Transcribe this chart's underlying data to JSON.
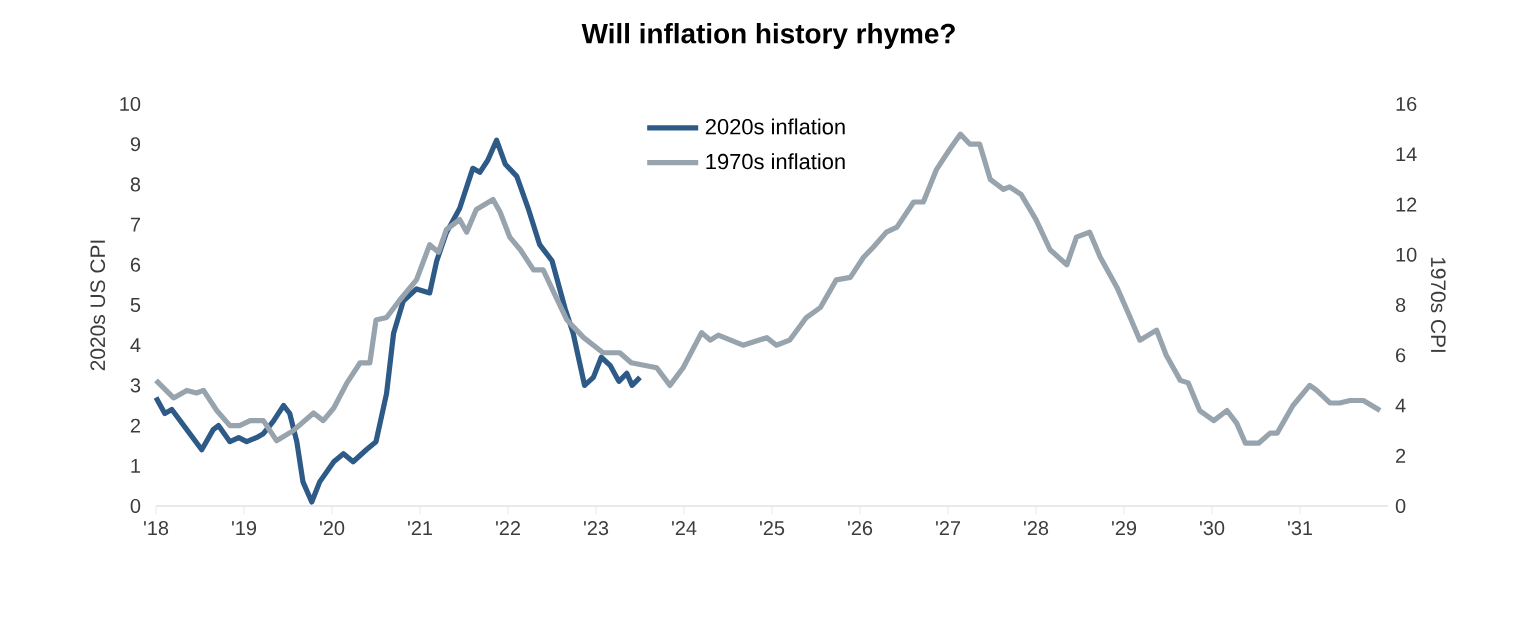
{
  "chart_data": {
    "type": "line",
    "title": "Will inflation history rhyme?",
    "ylabel": "2020s US CPI",
    "y2label": "1970s CPI",
    "xlim": [
      2018,
      2032
    ],
    "xticks": [
      {
        "value": 2018,
        "label": "'18"
      },
      {
        "value": 2019,
        "label": "'19"
      },
      {
        "value": 2020,
        "label": "'20"
      },
      {
        "value": 2021,
        "label": "'21"
      },
      {
        "value": 2022,
        "label": "'22"
      },
      {
        "value": 2023,
        "label": "'23"
      },
      {
        "value": 2024,
        "label": "'24"
      },
      {
        "value": 2025,
        "label": "'25"
      },
      {
        "value": 2026,
        "label": "'26"
      },
      {
        "value": 2027,
        "label": "'27"
      },
      {
        "value": 2028,
        "label": "'28"
      },
      {
        "value": 2029,
        "label": "'29"
      },
      {
        "value": 2030,
        "label": "'30"
      },
      {
        "value": 2031,
        "label": "'31"
      }
    ],
    "ylim": [
      0,
      10
    ],
    "yticks": [
      0,
      1,
      2,
      3,
      4,
      5,
      6,
      7,
      8,
      9,
      10
    ],
    "y2lim": [
      0,
      16
    ],
    "y2ticks": [
      0,
      2,
      4,
      6,
      8,
      10,
      12,
      14,
      16
    ],
    "legend": "top",
    "grid": false,
    "line_style": "solid",
    "series": [
      {
        "name": "2020s inflation",
        "color": "#2e5a87",
        "x": [
          2018.0,
          2018.1,
          2018.18,
          2018.35,
          2018.52,
          2018.65,
          2018.71,
          2018.84,
          2018.94,
          2019.03,
          2019.14,
          2019.22,
          2019.33,
          2019.45,
          2019.52,
          2019.6,
          2019.67,
          2019.77,
          2019.86,
          2020.02,
          2020.13,
          2020.24,
          2020.39,
          2020.5,
          2020.62,
          2020.7,
          2020.81,
          2020.96,
          2021.11,
          2021.19,
          2021.3,
          2021.45,
          2021.6,
          2021.68,
          2021.77,
          2021.87,
          2021.97,
          2022.1,
          2022.23,
          2022.36,
          2022.5,
          2022.65,
          2022.74,
          2022.87,
          2022.97,
          2023.06,
          2023.16,
          2023.26,
          2023.35,
          2023.41,
          2023.5
        ],
        "values": [
          2.7,
          2.3,
          2.4,
          1.9,
          1.4,
          1.9,
          2.0,
          1.6,
          1.7,
          1.6,
          1.7,
          1.8,
          2.1,
          2.5,
          2.3,
          1.6,
          0.6,
          0.1,
          0.6,
          1.1,
          1.3,
          1.1,
          1.4,
          1.6,
          2.8,
          4.3,
          5.1,
          5.4,
          5.3,
          6.1,
          6.8,
          7.4,
          8.4,
          8.3,
          8.6,
          9.1,
          8.5,
          8.2,
          7.4,
          6.5,
          6.1,
          4.9,
          4.3,
          3.0,
          3.2,
          3.7,
          3.5,
          3.1,
          3.3,
          3.0,
          3.2
        ]
      },
      {
        "name": "1970s inflation",
        "color": "#97a3ad",
        "axis": "y2",
        "x": [
          2018.0,
          2018.2,
          2018.35,
          2018.46,
          2018.54,
          2018.69,
          2018.84,
          2018.95,
          2019.07,
          2019.22,
          2019.37,
          2019.56,
          2019.79,
          2019.9,
          2020.02,
          2020.17,
          2020.32,
          2020.43,
          2020.5,
          2020.62,
          2020.77,
          2020.96,
          2021.11,
          2021.21,
          2021.3,
          2021.45,
          2021.53,
          2021.64,
          2021.83,
          2021.91,
          2022.02,
          2022.14,
          2022.29,
          2022.4,
          2022.52,
          2022.67,
          2022.86,
          2023.08,
          2023.27,
          2023.4,
          2023.69,
          2023.84,
          2023.99,
          2024.2,
          2024.3,
          2024.39,
          2024.67,
          2024.94,
          2025.05,
          2025.2,
          2025.39,
          2025.55,
          2025.73,
          2025.89,
          2026.04,
          2026.15,
          2026.3,
          2026.42,
          2026.61,
          2026.72,
          2026.87,
          2027.02,
          2027.14,
          2027.25,
          2027.36,
          2027.48,
          2027.63,
          2027.7,
          2027.83,
          2028.0,
          2028.16,
          2028.35,
          2028.46,
          2028.61,
          2028.73,
          2028.92,
          2029.07,
          2029.18,
          2029.37,
          2029.48,
          2029.64,
          2029.73,
          2029.86,
          2030.02,
          2030.17,
          2030.28,
          2030.38,
          2030.53,
          2030.66,
          2030.74,
          2030.92,
          2031.11,
          2031.19,
          2031.34,
          2031.45,
          2031.57,
          2031.72,
          2031.91
        ],
        "values": [
          5.0,
          4.3,
          4.6,
          4.5,
          4.6,
          3.8,
          3.2,
          3.2,
          3.4,
          3.4,
          2.6,
          3.0,
          3.7,
          3.4,
          3.9,
          4.9,
          5.7,
          5.7,
          7.4,
          7.5,
          8.2,
          9.0,
          10.4,
          10.1,
          11.0,
          11.4,
          10.9,
          11.8,
          12.2,
          11.7,
          10.7,
          10.2,
          9.4,
          9.4,
          8.5,
          7.4,
          6.7,
          6.1,
          6.1,
          5.7,
          5.5,
          4.8,
          5.5,
          6.9,
          6.6,
          6.8,
          6.4,
          6.7,
          6.4,
          6.6,
          7.5,
          7.9,
          9.0,
          9.1,
          9.9,
          10.3,
          10.9,
          11.1,
          12.1,
          12.1,
          13.4,
          14.2,
          14.8,
          14.4,
          14.4,
          13.0,
          12.6,
          12.7,
          12.4,
          11.4,
          10.2,
          9.6,
          10.7,
          10.9,
          9.9,
          8.7,
          7.5,
          6.6,
          7.0,
          6.0,
          5.0,
          4.9,
          3.8,
          3.4,
          3.8,
          3.3,
          2.5,
          2.5,
          2.9,
          2.9,
          4.0,
          4.8,
          4.6,
          4.1,
          4.1,
          4.2,
          4.2,
          3.8
        ]
      }
    ]
  }
}
